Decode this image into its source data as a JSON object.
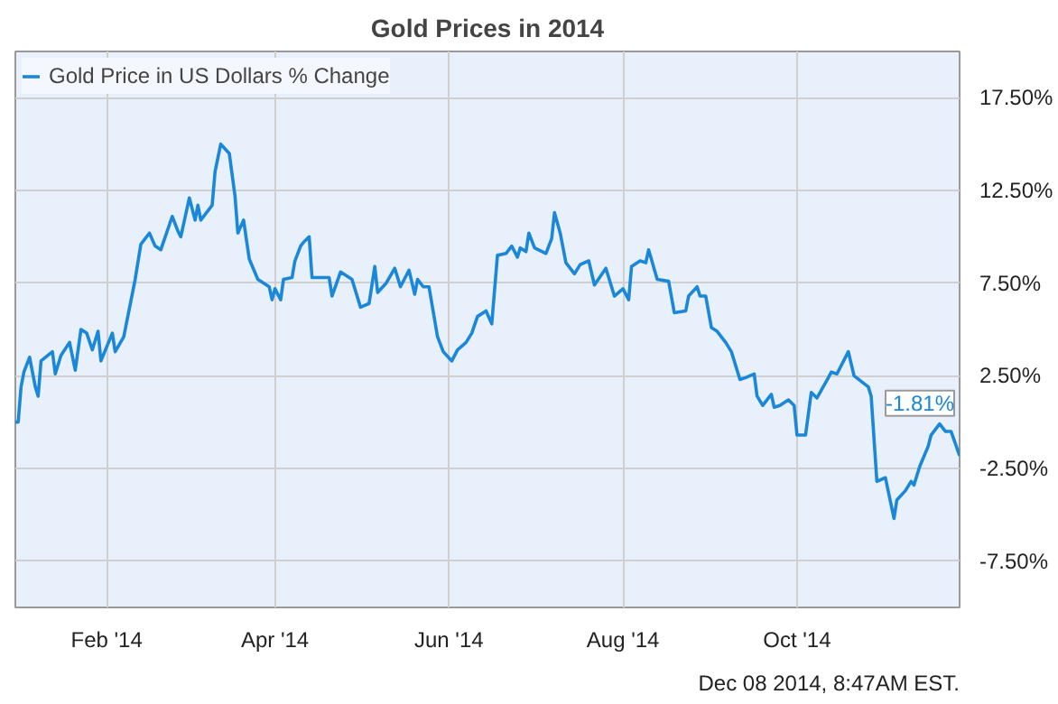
{
  "chart_data": {
    "type": "line",
    "title": "Gold Prices in 2014",
    "x": [
      "2013-12-31",
      "2014-01-01",
      "2014-01-02",
      "2014-01-03",
      "2014-01-05",
      "2014-01-07",
      "2014-01-08",
      "2014-01-09",
      "2014-01-13",
      "2014-01-14",
      "2014-01-16",
      "2014-01-19",
      "2014-01-21",
      "2014-01-23",
      "2014-01-25",
      "2014-01-27",
      "2014-01-29",
      "2014-01-30",
      "2014-02-03",
      "2014-02-04",
      "2014-02-07",
      "2014-02-11",
      "2014-02-13",
      "2014-02-16",
      "2014-02-18",
      "2014-02-20",
      "2014-02-24",
      "2014-02-26",
      "2014-02-27",
      "2014-03-02",
      "2014-03-04",
      "2014-03-05",
      "2014-03-06",
      "2014-03-10",
      "2014-03-11",
      "2014-03-13",
      "2014-03-16",
      "2014-03-18",
      "2014-03-19",
      "2014-03-21",
      "2014-03-23",
      "2014-03-26",
      "2014-03-30",
      "2014-03-31",
      "2014-04-01",
      "2014-04-03",
      "2014-04-04",
      "2014-04-07",
      "2014-04-08",
      "2014-04-10",
      "2014-04-11",
      "2014-04-13",
      "2014-04-14",
      "2014-04-20",
      "2014-04-21",
      "2014-04-24",
      "2014-04-28",
      "2014-05-01",
      "2014-05-04",
      "2014-05-06",
      "2014-05-07",
      "2014-05-10",
      "2014-05-13",
      "2014-05-15",
      "2014-05-18",
      "2014-05-20",
      "2014-05-21",
      "2014-05-23",
      "2014-05-25",
      "2014-05-28",
      "2014-05-30",
      "2014-06-02",
      "2014-06-04",
      "2014-06-07",
      "2014-06-09",
      "2014-06-11",
      "2014-06-14",
      "2014-06-16",
      "2014-06-18",
      "2014-06-21",
      "2014-06-23",
      "2014-06-25",
      "2014-06-26",
      "2014-06-28",
      "2014-06-29",
      "2014-07-01",
      "2014-07-05",
      "2014-07-07",
      "2014-07-08",
      "2014-07-10",
      "2014-07-12",
      "2014-07-15",
      "2014-07-17",
      "2014-07-20",
      "2014-07-22",
      "2014-07-26",
      "2014-07-29",
      "2014-08-01",
      "2014-08-03",
      "2014-08-04",
      "2014-08-07",
      "2014-08-09",
      "2014-08-10",
      "2014-08-13",
      "2014-08-17",
      "2014-08-19",
      "2014-08-23",
      "2014-08-24",
      "2014-08-27",
      "2014-08-28",
      "2014-08-30",
      "2014-09-01",
      "2014-09-03",
      "2014-09-06",
      "2014-09-08",
      "2014-09-11",
      "2014-09-13",
      "2014-09-16",
      "2014-09-17",
      "2014-09-19",
      "2014-09-22",
      "2014-09-23",
      "2014-09-25",
      "2014-09-28",
      "2014-09-30",
      "2014-10-01",
      "2014-10-04",
      "2014-10-06",
      "2014-10-08",
      "2014-10-12",
      "2014-10-13",
      "2014-10-15",
      "2014-10-19",
      "2014-10-21",
      "2014-10-26",
      "2014-10-27",
      "2014-10-29",
      "2014-11-01",
      "2014-11-04",
      "2014-11-05",
      "2014-11-08",
      "2014-11-10",
      "2014-11-11",
      "2014-11-13",
      "2014-11-16",
      "2014-11-17",
      "2014-11-20",
      "2014-11-22",
      "2014-11-24",
      "2014-11-27"
    ],
    "series": [
      {
        "name": "Gold Price in US Dollars % Change",
        "color": "#1a87d9",
        "values": [
          0.0,
          0.0,
          1.9,
          2.7,
          3.5,
          1.9,
          1.4,
          3.3,
          3.8,
          2.6,
          3.6,
          4.3,
          2.8,
          5.0,
          4.8,
          3.9,
          4.9,
          3.3,
          4.8,
          3.8,
          4.6,
          7.7,
          9.6,
          10.2,
          9.5,
          9.3,
          11.1,
          10.3,
          10.0,
          12.1,
          10.9,
          11.7,
          10.9,
          11.7,
          13.5,
          15.0,
          14.5,
          12.2,
          10.2,
          10.9,
          8.8,
          7.7,
          7.3,
          6.6,
          7.2,
          6.6,
          7.7,
          7.8,
          8.7,
          9.5,
          9.7,
          10.0,
          7.8,
          7.8,
          6.8,
          8.1,
          7.7,
          6.2,
          6.4,
          8.4,
          7.0,
          7.5,
          8.3,
          7.3,
          8.2,
          6.9,
          7.7,
          7.3,
          7.3,
          4.6,
          3.8,
          3.3,
          3.9,
          4.3,
          4.8,
          5.7,
          6.0,
          5.3,
          9.0,
          9.1,
          9.5,
          8.9,
          9.4,
          9.2,
          10.2,
          9.4,
          9.1,
          9.9,
          11.3,
          10.2,
          8.6,
          8.0,
          8.5,
          8.7,
          7.4,
          8.3,
          6.8,
          7.2,
          6.6,
          8.4,
          8.7,
          8.6,
          9.3,
          7.7,
          7.6,
          5.9,
          6.0,
          6.8,
          7.3,
          6.8,
          6.8,
          5.1,
          4.9,
          4.3,
          3.8,
          2.3,
          2.4,
          2.6,
          1.4,
          0.9,
          1.5,
          0.8,
          0.9,
          1.2,
          0.9,
          -0.7,
          -0.7,
          1.6,
          1.3,
          2.4,
          2.7,
          2.6,
          3.8,
          2.5,
          1.9,
          1.4,
          -3.2,
          -3.0,
          -5.2,
          -4.2,
          -3.7,
          -3.2,
          -3.4,
          -2.4,
          -1.3,
          -0.7,
          -0.1,
          -0.5,
          -0.5,
          -1.81
        ]
      }
    ],
    "xlim": [
      "2013-12-31",
      "2014-11-27"
    ],
    "xticks": [
      {
        "value": "2014-02-01",
        "label": "Feb '14"
      },
      {
        "value": "2014-04-01",
        "label": "Apr '14"
      },
      {
        "value": "2014-06-01",
        "label": "Jun '14"
      },
      {
        "value": "2014-08-01",
        "label": "Aug '14"
      },
      {
        "value": "2014-10-01",
        "label": "Oct '14"
      }
    ],
    "ylim": [
      -10,
      20
    ],
    "yticks": [
      {
        "value": -7.5,
        "label": "-7.50%"
      },
      {
        "value": -2.5,
        "label": "-2.50%"
      },
      {
        "value": 2.5,
        "label": "2.50%"
      },
      {
        "value": 7.5,
        "label": "7.50%"
      },
      {
        "value": 12.5,
        "label": "12.50%"
      },
      {
        "value": 17.5,
        "label": "17.50%"
      }
    ],
    "grid": true,
    "legend": "top left",
    "line_style": "solid",
    "marker": "none",
    "annotations": [
      {
        "text": "-1.81%",
        "x": "2014-11-27",
        "y": -1.81
      },
      "Dec 08 2014, 8:47AM EST."
    ]
  }
}
